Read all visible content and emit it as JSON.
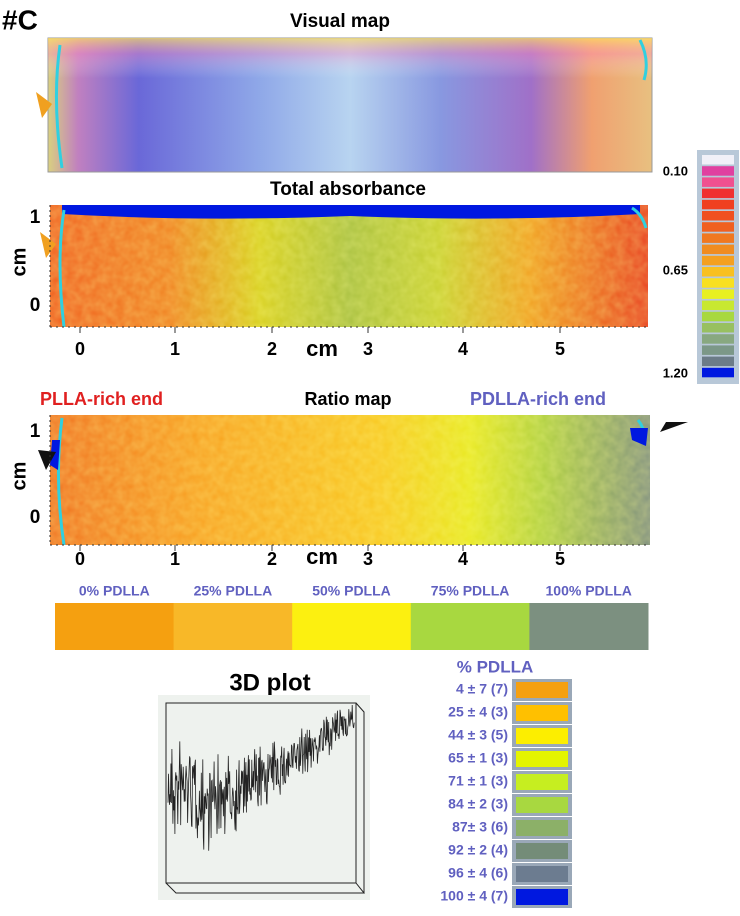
{
  "figure_label": "#C",
  "visual_map": {
    "title": "Visual map"
  },
  "colorbar": {
    "labels": [
      "0.10",
      "0.65",
      "1.20"
    ]
  },
  "total_absorbance": {
    "title": "Total absorbance",
    "y_axis_label": "cm",
    "y_ticks": [
      "1",
      "0"
    ],
    "x_axis_label": "cm",
    "x_ticks": [
      "0",
      "1",
      "2",
      "3",
      "4",
      "5"
    ]
  },
  "ratio_map": {
    "title": "Ratio map",
    "left_label": "PLLA-rich end",
    "right_label": "PDLLA-rich end",
    "y_axis_label": "cm",
    "y_ticks": [
      "1",
      "0"
    ],
    "x_axis_label": "cm",
    "x_ticks": [
      "0",
      "1",
      "2",
      "3",
      "4",
      "5"
    ]
  },
  "standards": [
    "0% PDLLA",
    "25% PDLLA",
    "50% PDLLA",
    "75% PDLLA",
    "100% PDLLA"
  ],
  "plot_3d": {
    "title": "3D plot"
  },
  "legend": {
    "title": "% PDLLA",
    "entries": [
      "4 ± 7 (7)",
      "25 ± 4 (3)",
      "44 ± 3 (5)",
      "65 ± 1 (3)",
      "71 ± 1 (3)",
      "84 ± 2 (3)",
      "87± 3 (6)",
      "92 ± 2 (4)",
      "96 ± 4 (6)",
      "100 ± 4 (7)"
    ]
  }
}
